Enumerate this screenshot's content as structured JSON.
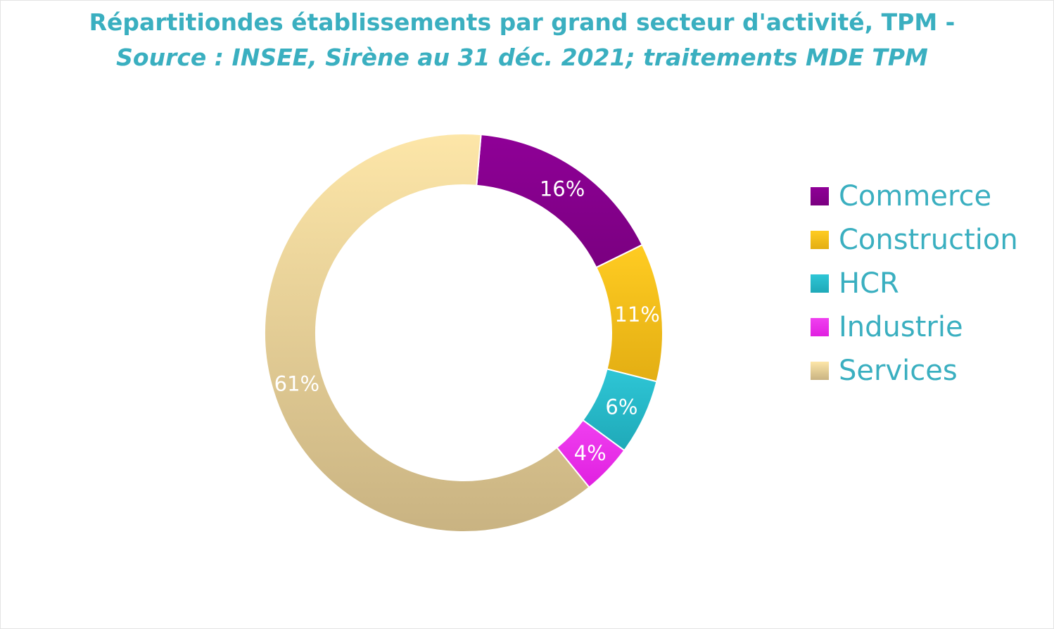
{
  "chart_data": {
    "type": "pie",
    "title": "Répartitiondes établissements par grand secteur d'activité, TPM -",
    "subtitle": "Source : INSEE, Sirène au 31 déc. 2021; traitements MDE TPM",
    "legend_position": "right",
    "slices": [
      {
        "name": "Commerce",
        "value": 16,
        "label": "16%",
        "color": "#7a0080",
        "color_light": "#8f0097"
      },
      {
        "name": "Construction",
        "value": 11,
        "label": "11%",
        "color": "#e3ae13",
        "color_light": "#ffcc22"
      },
      {
        "name": "HCR",
        "value": 6,
        "label": "6%",
        "color": "#1fa9b8",
        "color_light": "#2ec6d6"
      },
      {
        "name": "Industrie",
        "value": 4,
        "label": "4%",
        "color": "#e020e0",
        "color_light": "#f040f0"
      },
      {
        "name": "Services",
        "value": 61,
        "label": "61%",
        "color": "#c9b382",
        "color_light": "#fde6a8"
      }
    ]
  }
}
